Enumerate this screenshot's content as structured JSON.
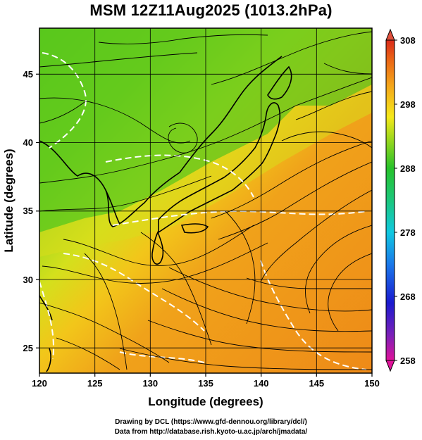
{
  "title": "MSM 12Z11Aug2025 (1013.2hPa)",
  "xaxis": {
    "label": "Longitude (degrees)",
    "ticks": [
      "120",
      "125",
      "130",
      "135",
      "140",
      "145",
      "150"
    ],
    "range": [
      120,
      150
    ]
  },
  "yaxis": {
    "label": "Latitude  (degrees)",
    "ticks": [
      "25",
      "30",
      "35",
      "40",
      "45"
    ],
    "range": [
      22.4,
      47.6
    ]
  },
  "colorbar": {
    "labels": [
      "308",
      "298",
      "288",
      "278",
      "268",
      "258"
    ],
    "range": [
      258,
      308
    ],
    "colors": [
      "#e0129a",
      "#6f1fb5",
      "#1c1ccf",
      "#1a6fe8",
      "#10c3e0",
      "#19c98a",
      "#1fbf2a",
      "#6cd41a",
      "#c9e21c",
      "#f7e91a",
      "#f5b21a",
      "#f08a16",
      "#e85a14",
      "#d92a1a"
    ]
  },
  "map": {
    "field": "surface temperature (K) with streamlines",
    "grid": "on",
    "grid_color": "#000000",
    "contour_color": "#ffffff",
    "land_outline_color": "#000000"
  },
  "credits": {
    "line1": "Drawing by DCL (https://www.gfd-dennou.org/library/dcl/)",
    "line2": "Data from http://database.rish.kyoto-u.ac.jp/arch/jmadata/"
  }
}
